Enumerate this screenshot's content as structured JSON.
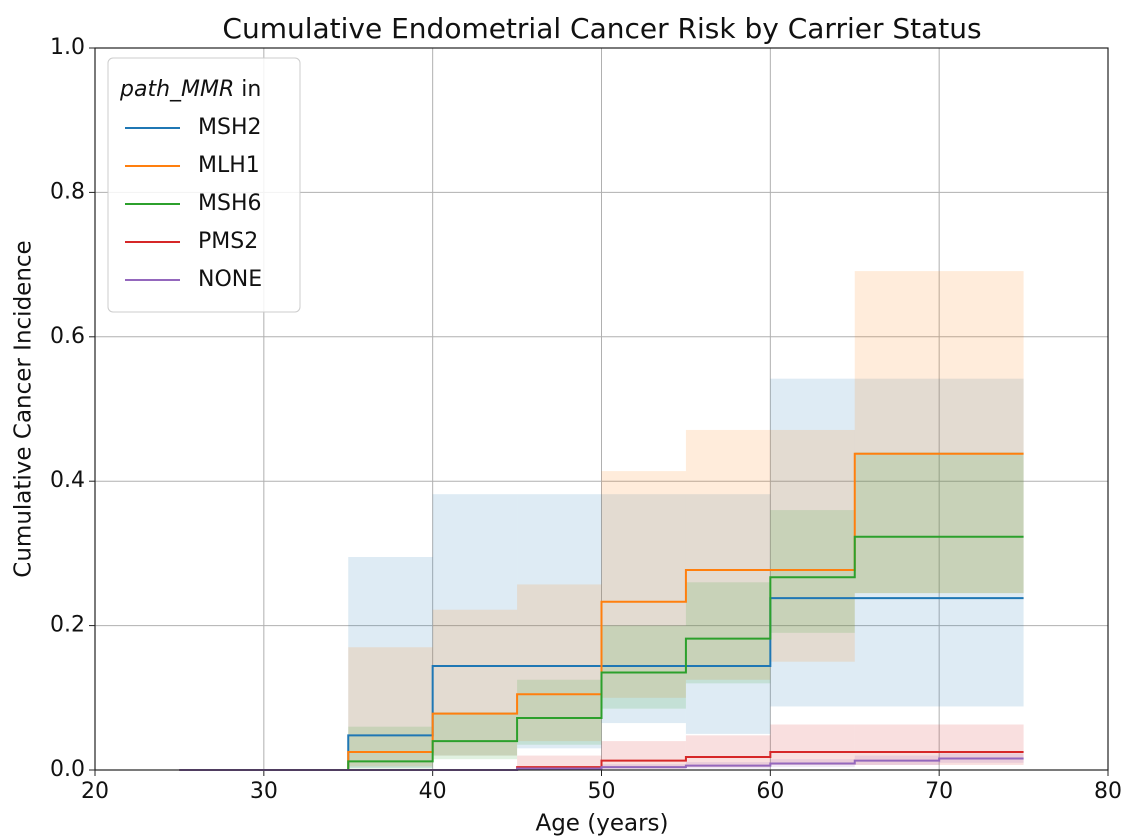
{
  "chart_data": {
    "type": "step",
    "title": "Cumulative Endometrial Cancer Risk by Carrier Status",
    "x_label": "Age (years)",
    "y_label": "Cumulative Cancer Incidence",
    "legend_title": [
      "path_MMR",
      "in"
    ],
    "legend_position": "upper left",
    "grid": true,
    "band_opacity": 0.15,
    "xlim": [
      20,
      80
    ],
    "xticks": [
      20,
      30,
      40,
      50,
      60,
      70,
      80
    ],
    "ylim": [
      0,
      1
    ],
    "yticks": [
      {
        "value": 0,
        "label": "0.0"
      },
      0.2,
      0.4,
      0.6,
      0.8,
      {
        "value": 1,
        "label": "1.0"
      }
    ],
    "x": [
      25,
      35,
      40,
      45,
      50,
      55,
      60,
      65,
      70,
      75
    ],
    "series": [
      {
        "name": "MSH2",
        "color": "#1f77b4",
        "values": [
          0,
          0.048,
          0.144,
          0.144,
          0.144,
          0.144,
          0.238,
          0.238,
          0.238,
          0.238
        ],
        "lower": [
          0,
          0.003,
          0.02,
          0.03,
          0.065,
          0.05,
          0.088,
          0.088,
          0.088,
          0.088
        ],
        "upper": [
          0,
          0.295,
          0.382,
          0.382,
          0.382,
          0.382,
          0.542,
          0.542,
          0.542,
          0.542
        ]
      },
      {
        "name": "MLH1",
        "color": "#ff7f0e",
        "values": [
          0,
          0.025,
          0.078,
          0.105,
          0.233,
          0.277,
          0.277,
          0.438,
          0.438,
          0.438
        ],
        "lower": [
          0,
          0.005,
          0.02,
          0.04,
          0.1,
          0.125,
          0.15,
          0.245,
          0.245,
          0.245
        ],
        "upper": [
          0,
          0.17,
          0.222,
          0.257,
          0.414,
          0.471,
          0.471,
          0.691,
          0.691,
          0.691
        ]
      },
      {
        "name": "MSH6",
        "color": "#2ca02c",
        "values": [
          0,
          0.012,
          0.04,
          0.072,
          0.135,
          0.182,
          0.267,
          0.323,
          0.323,
          0.323
        ],
        "lower": [
          0,
          0.002,
          0.015,
          0.035,
          0.085,
          0.12,
          0.19,
          0.245,
          0.245,
          0.245
        ],
        "upper": [
          0,
          0.06,
          0.08,
          0.125,
          0.2,
          0.26,
          0.36,
          0.44,
          0.44,
          0.44
        ]
      },
      {
        "name": "PMS2",
        "color": "#d62728",
        "values": [
          0,
          0,
          0,
          0.004,
          0.013,
          0.018,
          0.025,
          0.025,
          0.025,
          0.025
        ],
        "lower": [
          0,
          0,
          0,
          0,
          0.002,
          0.004,
          0.007,
          0.007,
          0.007,
          0.007
        ],
        "upper": [
          0,
          0,
          0,
          0.02,
          0.04,
          0.048,
          0.063,
          0.063,
          0.063,
          0.063
        ]
      },
      {
        "name": "NONE",
        "color": "#9467bd",
        "values": [
          0,
          0,
          0,
          0.002,
          0.004,
          0.006,
          0.009,
          0.013,
          0.016,
          0.016
        ],
        "lower": [
          0,
          0,
          0,
          0,
          0.001,
          0.002,
          0.004,
          0.007,
          0.01,
          0.01
        ],
        "upper": [
          0,
          0,
          0,
          0.005,
          0.008,
          0.011,
          0.015,
          0.02,
          0.023,
          0.023
        ]
      }
    ]
  }
}
